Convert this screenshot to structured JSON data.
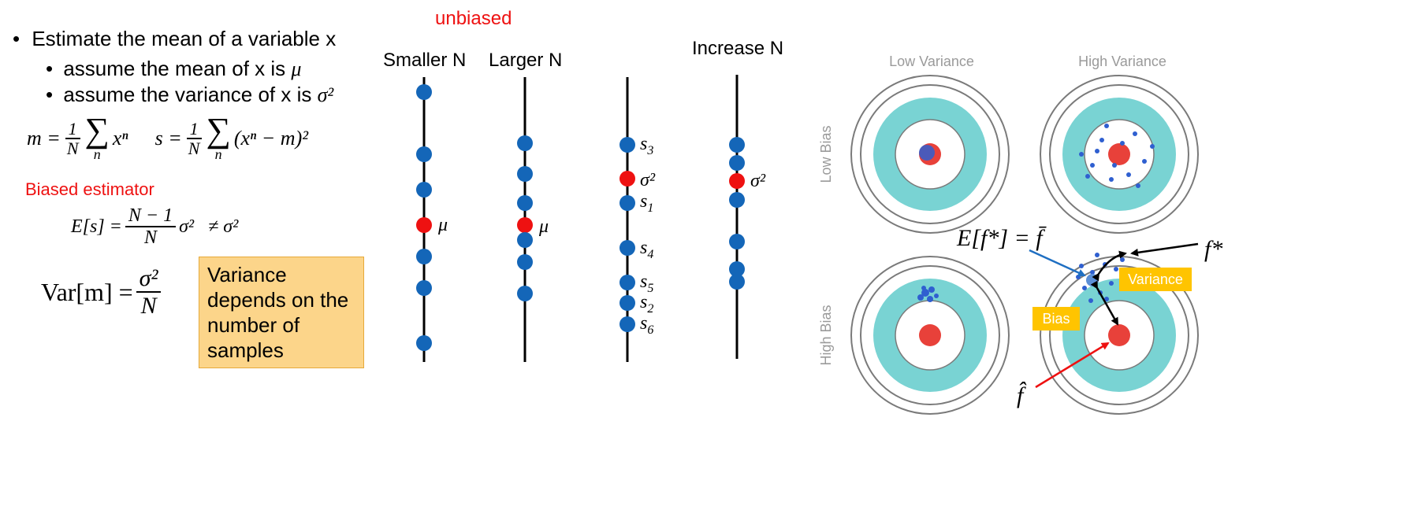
{
  "left": {
    "bullet_main": "Estimate the mean of a variable x",
    "sub_mean_prefix": "assume the mean of x is ",
    "sub_mean_symbol": "μ",
    "sub_var_prefix": "assume the variance of x is ",
    "sub_var_symbol": "σ²",
    "formula_m_lhs": "m =",
    "formula_s_lhs": "s =",
    "frac_one": "1",
    "frac_N": "N",
    "sum_symbol": "∑",
    "sum_index": "n",
    "m_term": "xⁿ",
    "s_term": "(xⁿ − m)²",
    "biased_label": "Biased estimator",
    "es_lhs": "E[s] =",
    "es_num": "N − 1",
    "es_den": "N",
    "es_rhs": "σ²   ≠ σ²",
    "var_lhs": "Var[m] =",
    "var_num": "σ²",
    "var_den": "N",
    "note": "Variance depends on the number of samples"
  },
  "middle": {
    "unbiased_label": "unbiased",
    "smaller_n_label": "Smaller N",
    "larger_n_label": "Larger N",
    "increase_n_label": "Increase N",
    "mu_label": "μ",
    "sigma_label": "σ²",
    "s_labels": [
      "s3",
      "s1",
      "s4",
      "s5",
      "s2",
      "s6"
    ],
    "colors": {
      "sample": "#1466b8",
      "true_value": "#ee1111",
      "line": "#000000"
    }
  },
  "right": {
    "low_variance": "Low Variance",
    "high_variance": "High Variance",
    "low_bias": "Low Bias",
    "high_bias": "High Bias",
    "expect_label": "E[f*] = f̄",
    "fstar_label": "f*",
    "fhat_label": "f̂",
    "variance_tag": "Variance",
    "bias_tag": "Bias",
    "colors": {
      "ring": "#7a7a7a",
      "teal": "#79d3d3",
      "bullseye": "#e8413a",
      "tag": "#ffc400"
    }
  }
}
